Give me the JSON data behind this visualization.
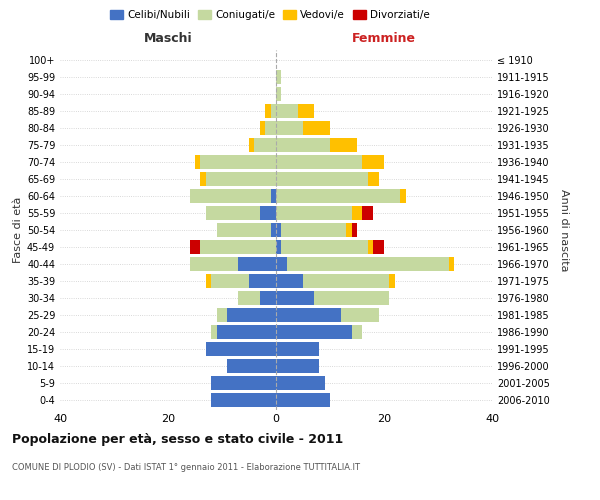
{
  "age_groups": [
    "0-4",
    "5-9",
    "10-14",
    "15-19",
    "20-24",
    "25-29",
    "30-34",
    "35-39",
    "40-44",
    "45-49",
    "50-54",
    "55-59",
    "60-64",
    "65-69",
    "70-74",
    "75-79",
    "80-84",
    "85-89",
    "90-94",
    "95-99",
    "100+"
  ],
  "birth_years": [
    "2006-2010",
    "2001-2005",
    "1996-2000",
    "1991-1995",
    "1986-1990",
    "1981-1985",
    "1976-1980",
    "1971-1975",
    "1966-1970",
    "1961-1965",
    "1956-1960",
    "1951-1955",
    "1946-1950",
    "1941-1945",
    "1936-1940",
    "1931-1935",
    "1926-1930",
    "1921-1925",
    "1916-1920",
    "1911-1915",
    "≤ 1910"
  ],
  "colors": {
    "celibi": "#4472c4",
    "coniugati": "#c5d9a0",
    "vedovi": "#ffc000",
    "divorziati": "#cc0000"
  },
  "males": {
    "celibi": [
      12,
      12,
      9,
      13,
      11,
      9,
      3,
      5,
      7,
      0,
      1,
      3,
      1,
      0,
      0,
      0,
      0,
      0,
      0,
      0,
      0
    ],
    "coniugati": [
      0,
      0,
      0,
      0,
      1,
      2,
      4,
      7,
      9,
      14,
      10,
      10,
      15,
      13,
      14,
      4,
      2,
      1,
      0,
      0,
      0
    ],
    "vedovi": [
      0,
      0,
      0,
      0,
      0,
      0,
      0,
      1,
      0,
      0,
      0,
      0,
      0,
      1,
      1,
      1,
      1,
      1,
      0,
      0,
      0
    ],
    "divorziati": [
      0,
      0,
      0,
      0,
      0,
      0,
      0,
      0,
      0,
      2,
      0,
      0,
      0,
      0,
      0,
      0,
      0,
      0,
      0,
      0,
      0
    ]
  },
  "females": {
    "celibi": [
      10,
      9,
      8,
      8,
      14,
      12,
      7,
      5,
      2,
      1,
      1,
      0,
      0,
      0,
      0,
      0,
      0,
      0,
      0,
      0,
      0
    ],
    "coniugati": [
      0,
      0,
      0,
      0,
      2,
      7,
      14,
      16,
      30,
      16,
      12,
      14,
      23,
      17,
      16,
      10,
      5,
      4,
      1,
      1,
      0
    ],
    "vedovi": [
      0,
      0,
      0,
      0,
      0,
      0,
      0,
      1,
      1,
      1,
      1,
      2,
      1,
      2,
      4,
      5,
      5,
      3,
      0,
      0,
      0
    ],
    "divorziati": [
      0,
      0,
      0,
      0,
      0,
      0,
      0,
      0,
      0,
      2,
      1,
      2,
      0,
      0,
      0,
      0,
      0,
      0,
      0,
      0,
      0
    ]
  },
  "title": "Popolazione per età, sesso e stato civile - 2011",
  "subtitle": "COMUNE DI PLODIO (SV) - Dati ISTAT 1° gennaio 2011 - Elaborazione TUTTITALIA.IT",
  "xlabel_left": "Maschi",
  "xlabel_right": "Femmine",
  "ylabel": "Fasce di età",
  "ylabel_right": "Anni di nascita",
  "xlim": 40,
  "legend_labels": [
    "Celibi/Nubili",
    "Coniugati/e",
    "Vedovi/e",
    "Divorziati/e"
  ]
}
